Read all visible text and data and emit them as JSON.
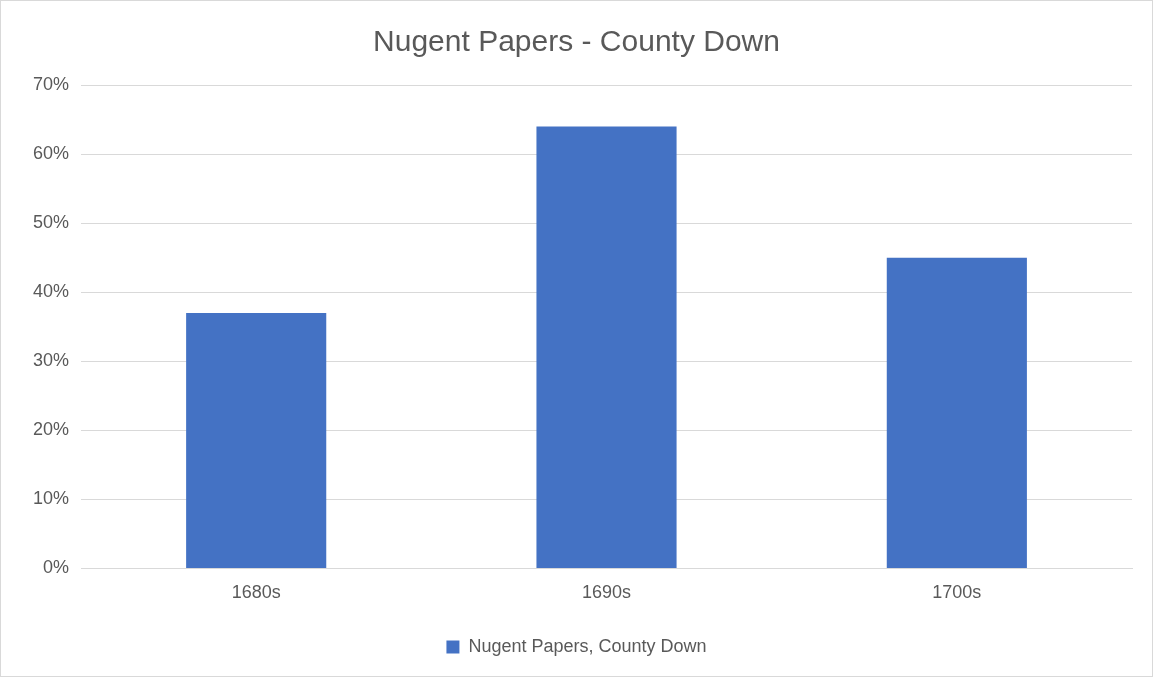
{
  "chart_data": {
    "type": "bar",
    "title": "Nugent Papers - County Down",
    "categories": [
      "1680s",
      "1690s",
      "1700s"
    ],
    "series": [
      {
        "name": "Nugent Papers, County Down",
        "color": "#4472c4",
        "values": [
          37,
          64,
          45
        ]
      }
    ],
    "ylim": [
      0,
      70
    ],
    "yticks": [
      {
        "value": 0,
        "label": "0%"
      },
      {
        "value": 10,
        "label": "10%"
      },
      {
        "value": 20,
        "label": "20%"
      },
      {
        "value": 30,
        "label": "30%"
      },
      {
        "value": 40,
        "label": "40%"
      },
      {
        "value": 50,
        "label": "50%"
      },
      {
        "value": 60,
        "label": "60%"
      },
      {
        "value": 70,
        "label": "70%"
      }
    ],
    "grid": "y",
    "legend": "bottom"
  }
}
